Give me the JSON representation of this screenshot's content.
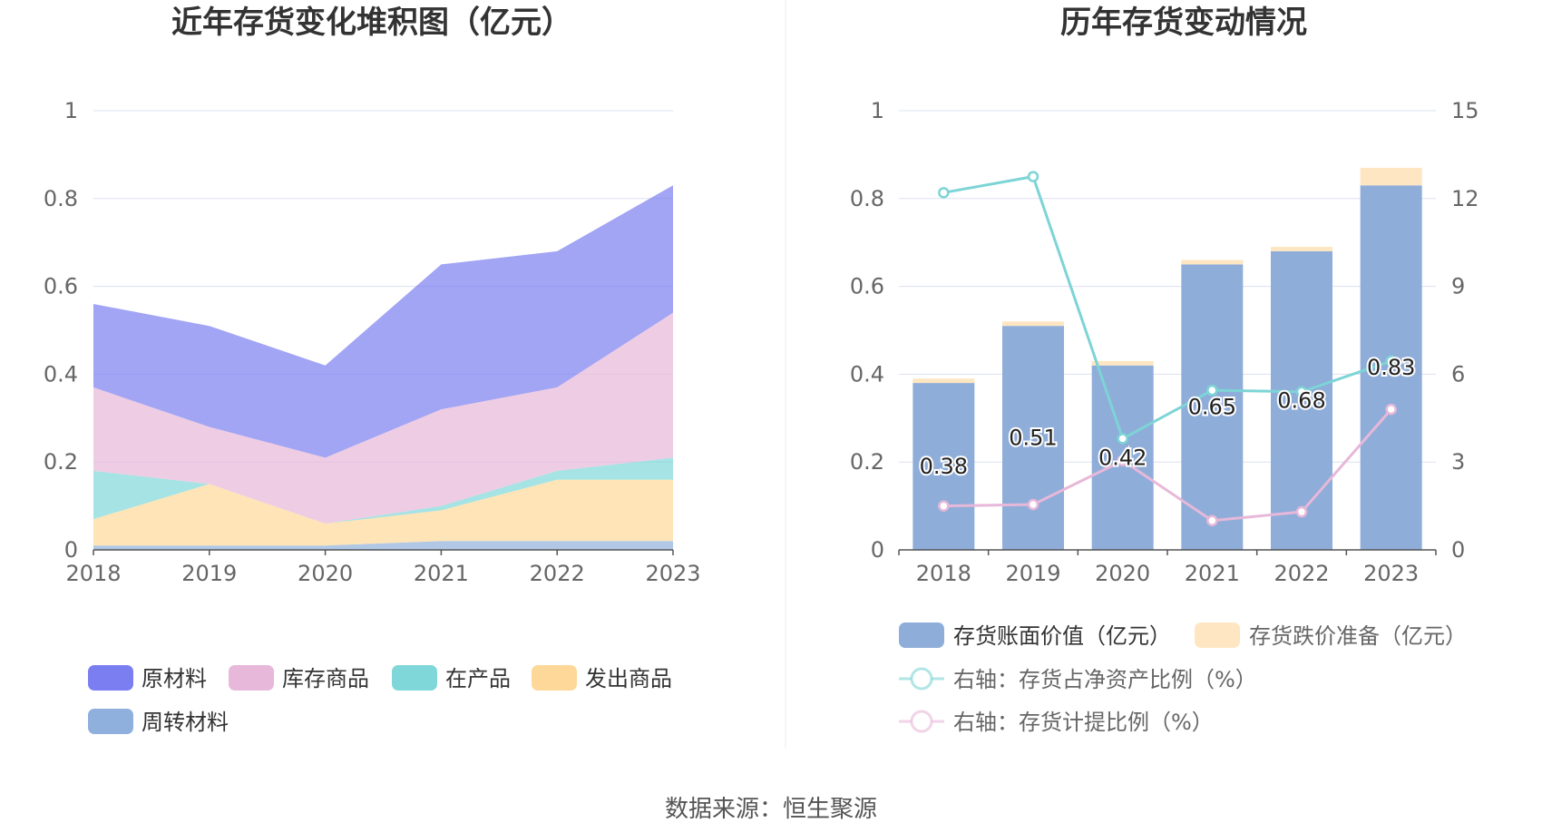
{
  "source_label": "数据来源：恒生聚源",
  "colors": {
    "raw_material": "#7b7ef0",
    "stock_goods": "#e7b8d9",
    "wip": "#80d7d9",
    "shipped": "#fdd898",
    "turnover": "#8fb0dc",
    "book_value": "#8fadd9",
    "impairment": "#fde6c1",
    "ratio_net_assets": "#7dd4d6",
    "ratio_provision": "#e7b8d9",
    "grid": "#dde0f2",
    "axis": "#555555"
  },
  "chart_data": [
    {
      "type": "area",
      "stacked": true,
      "title": "近年存货变化堆积图（亿元）",
      "categories": [
        "2018",
        "2019",
        "2020",
        "2021",
        "2022",
        "2023"
      ],
      "ylim": [
        0,
        1
      ],
      "yticks": [
        "0",
        "0.2",
        "0.4",
        "0.6",
        "0.8",
        "1"
      ],
      "grid": true,
      "legend_position": "bottom",
      "series": [
        {
          "name": "周转材料",
          "key": "turnover",
          "values": [
            0.01,
            0.01,
            0.01,
            0.02,
            0.02,
            0.02
          ]
        },
        {
          "name": "发出商品",
          "key": "shipped",
          "values": [
            0.06,
            0.14,
            0.05,
            0.07,
            0.14,
            0.14
          ]
        },
        {
          "name": "在产品",
          "key": "wip",
          "values": [
            0.11,
            0.0,
            0.0,
            0.01,
            0.02,
            0.05
          ]
        },
        {
          "name": "库存商品",
          "key": "stock_goods",
          "values": [
            0.19,
            0.13,
            0.15,
            0.22,
            0.19,
            0.33
          ]
        },
        {
          "name": "原材料",
          "key": "raw_material",
          "values": [
            0.19,
            0.23,
            0.21,
            0.33,
            0.31,
            0.29
          ]
        }
      ],
      "legend_order": [
        "原材料",
        "库存商品",
        "在产品",
        "发出商品",
        "周转材料"
      ]
    },
    {
      "type": "bar+line",
      "stacked": true,
      "title": "历年存货变动情况",
      "categories": [
        "2018",
        "2019",
        "2020",
        "2021",
        "2022",
        "2023"
      ],
      "ylim_left": [
        0,
        1
      ],
      "yticks_left": [
        "0",
        "0.2",
        "0.4",
        "0.6",
        "0.8",
        "1"
      ],
      "ylim_right": [
        0,
        15
      ],
      "yticks_right": [
        "0",
        "3",
        "6",
        "9",
        "12",
        "15"
      ],
      "grid": true,
      "legend_position": "bottom",
      "bars": [
        {
          "name": "存货账面价值（亿元）",
          "key": "book_value",
          "values": [
            0.38,
            0.51,
            0.42,
            0.65,
            0.68,
            0.83
          ],
          "labels": [
            "0.38",
            "0.51",
            "0.42",
            "0.65",
            "0.68",
            "0.83"
          ]
        },
        {
          "name": "存货跌价准备（亿元）",
          "key": "impairment",
          "values": [
            0.01,
            0.01,
            0.01,
            0.01,
            0.01,
            0.04
          ]
        }
      ],
      "lines": [
        {
          "name": "右轴：存货占净资产比例（%）",
          "key": "ratio_net_assets",
          "axis": "right",
          "values": [
            12.2,
            12.75,
            3.8,
            5.45,
            5.4,
            6.45
          ]
        },
        {
          "name": "右轴：存货计提比例（%）",
          "key": "ratio_provision",
          "axis": "right",
          "values": [
            1.5,
            1.55,
            3.05,
            1.0,
            1.3,
            4.8
          ]
        }
      ]
    }
  ]
}
